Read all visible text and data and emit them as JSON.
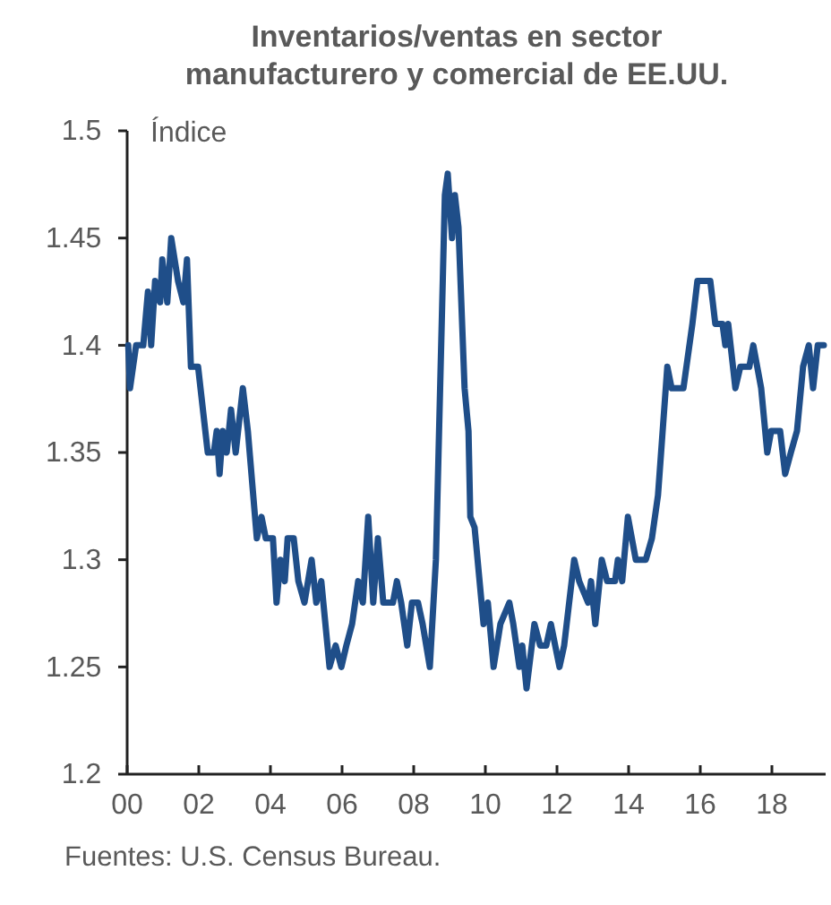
{
  "chart_data": {
    "type": "line",
    "title": "Inventarios/ventas en sector manufacturero y comercial de EE.UU.",
    "ylabel": "Índice",
    "annotations": [
      "Fuentes: U.S. Census Bureau."
    ],
    "xlim": [
      0,
      19.5
    ],
    "xticks": [
      {
        "value": 0,
        "label": "00"
      },
      {
        "value": 2,
        "label": "02"
      },
      {
        "value": 4,
        "label": "04"
      },
      {
        "value": 6,
        "label": "06"
      },
      {
        "value": 8,
        "label": "08"
      },
      {
        "value": 10,
        "label": "10"
      },
      {
        "value": 12,
        "label": "12"
      },
      {
        "value": 14,
        "label": "14"
      },
      {
        "value": 16,
        "label": "16"
      },
      {
        "value": 18,
        "label": "18"
      }
    ],
    "ylim": [
      1.2,
      1.5
    ],
    "yticks": [
      1.2,
      1.25,
      1.3,
      1.35,
      1.4,
      1.45,
      1.5
    ],
    "grid": false,
    "marker": "none",
    "line_style": "solid",
    "series": [
      {
        "color": "#1f4e89",
        "x": [
          0.03,
          0.08,
          0.25,
          0.45,
          0.58,
          0.67,
          0.78,
          0.92,
          0.98,
          1.12,
          1.23,
          1.42,
          1.57,
          1.67,
          1.78,
          1.98,
          2.25,
          2.42,
          2.5,
          2.58,
          2.67,
          2.78,
          2.9,
          3.03,
          3.23,
          3.37,
          3.62,
          3.75,
          3.87,
          4.07,
          4.17,
          4.28,
          4.4,
          4.48,
          4.65,
          4.78,
          4.95,
          5.15,
          5.28,
          5.42,
          5.65,
          5.82,
          5.98,
          6.12,
          6.28,
          6.45,
          6.58,
          6.73,
          6.87,
          7.0,
          7.15,
          7.42,
          7.53,
          7.65,
          7.82,
          7.95,
          8.12,
          8.25,
          8.45,
          8.62,
          8.87,
          8.95,
          9.07,
          9.15,
          9.25,
          9.42,
          9.53,
          9.58,
          9.7,
          9.95,
          10.07,
          10.23,
          10.42,
          10.67,
          10.78,
          10.95,
          11.03,
          11.15,
          11.37,
          11.53,
          11.7,
          11.83,
          12.07,
          12.2,
          12.48,
          12.62,
          12.87,
          12.95,
          13.07,
          13.25,
          13.4,
          13.62,
          13.7,
          13.82,
          13.98,
          14.2,
          14.48,
          14.65,
          14.82,
          14.95,
          15.08,
          15.2,
          15.53,
          15.78,
          15.92,
          16.28,
          16.42,
          16.62,
          16.7,
          16.78,
          16.98,
          17.12,
          17.37,
          17.48,
          17.7,
          17.87,
          17.98,
          18.23,
          18.37,
          18.53,
          18.7,
          18.87,
          19.03,
          19.15,
          19.28,
          19.45
        ],
        "values": [
          1.4,
          1.38,
          1.4,
          1.4,
          1.425,
          1.4,
          1.43,
          1.42,
          1.44,
          1.42,
          1.45,
          1.43,
          1.42,
          1.44,
          1.39,
          1.39,
          1.35,
          1.35,
          1.36,
          1.34,
          1.36,
          1.35,
          1.37,
          1.35,
          1.38,
          1.36,
          1.31,
          1.32,
          1.31,
          1.31,
          1.28,
          1.3,
          1.29,
          1.31,
          1.31,
          1.29,
          1.28,
          1.3,
          1.28,
          1.29,
          1.25,
          1.26,
          1.25,
          1.26,
          1.27,
          1.29,
          1.28,
          1.32,
          1.28,
          1.31,
          1.28,
          1.28,
          1.29,
          1.28,
          1.26,
          1.28,
          1.28,
          1.27,
          1.25,
          1.3,
          1.47,
          1.48,
          1.45,
          1.47,
          1.455,
          1.38,
          1.36,
          1.32,
          1.315,
          1.27,
          1.28,
          1.25,
          1.27,
          1.28,
          1.27,
          1.25,
          1.26,
          1.24,
          1.27,
          1.26,
          1.26,
          1.27,
          1.25,
          1.26,
          1.3,
          1.29,
          1.28,
          1.29,
          1.27,
          1.3,
          1.29,
          1.29,
          1.3,
          1.29,
          1.32,
          1.3,
          1.3,
          1.31,
          1.33,
          1.36,
          1.39,
          1.38,
          1.38,
          1.41,
          1.43,
          1.43,
          1.41,
          1.41,
          1.4,
          1.41,
          1.38,
          1.39,
          1.39,
          1.4,
          1.38,
          1.35,
          1.36,
          1.36,
          1.34,
          1.35,
          1.36,
          1.39,
          1.4,
          1.38,
          1.4,
          1.4
        ]
      }
    ]
  }
}
